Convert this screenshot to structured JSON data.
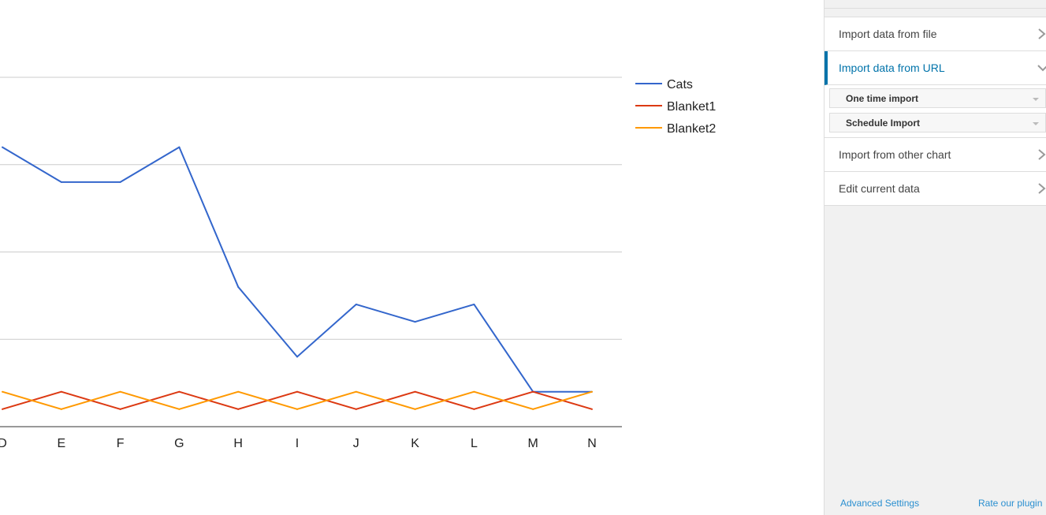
{
  "chart_data": {
    "type": "line",
    "title": "",
    "xlabel": "",
    "ylabel": "",
    "categories": [
      "D",
      "E",
      "F",
      "G",
      "H",
      "I",
      "J",
      "K",
      "L",
      "M",
      "N"
    ],
    "ylim": [
      0,
      4
    ],
    "gridlines": [
      0,
      1,
      2,
      3,
      4
    ],
    "legend_position": "right",
    "series": [
      {
        "name": "Cats",
        "color": "#3366cc",
        "values": [
          3.2,
          2.8,
          2.8,
          3.2,
          1.6,
          0.8,
          1.4,
          1.2,
          1.4,
          0.4,
          0.4
        ]
      },
      {
        "name": "Blanket1",
        "color": "#dc3912",
        "values": [
          0.2,
          0.4,
          0.2,
          0.4,
          0.2,
          0.4,
          0.2,
          0.4,
          0.2,
          0.4,
          0.2
        ]
      },
      {
        "name": "Blanket2",
        "color": "#ff9900",
        "values": [
          0.4,
          0.2,
          0.4,
          0.2,
          0.4,
          0.2,
          0.4,
          0.2,
          0.4,
          0.2,
          0.4
        ]
      }
    ]
  },
  "sidebar": {
    "import_file": "Import data from file",
    "import_url": "Import data from URL",
    "one_time_import": "One time import",
    "schedule_import": "Schedule Import",
    "import_other_chart": "Import from other chart",
    "edit_current_data": "Edit current data",
    "advanced_settings": "Advanced Settings",
    "rate_plugin": "Rate our plugin"
  },
  "icons": {
    "collapsed": "chevron-right-icon",
    "expanded": "chevron-down-icon",
    "dropdown": "caret-down-icon"
  }
}
